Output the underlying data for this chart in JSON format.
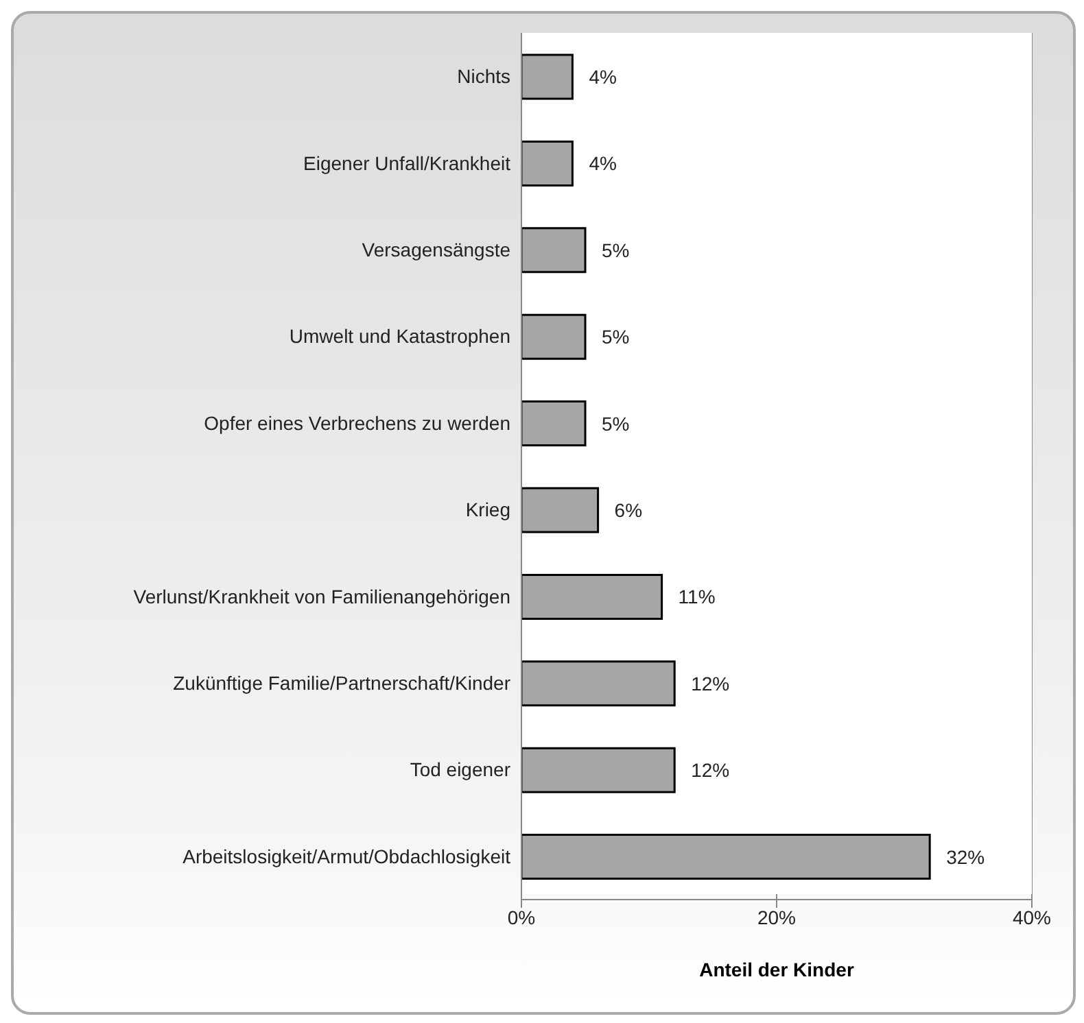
{
  "chart_data": {
    "type": "bar",
    "orientation": "horizontal",
    "xlabel": "Anteil der Kinder",
    "categories": [
      "Nichts",
      "Eigener Unfall/Krankheit",
      "Versagensängste",
      "Umwelt und Katastrophen",
      "Opfer eines Verbrechens zu werden",
      "Krieg",
      "Verlunst/Krankheit von Familienangehörigen",
      "Zukünftige Familie/Partnerschaft/Kinder",
      "Tod eigener",
      "Arbeitslosigkeit/Armut/Obdachlosigkeit"
    ],
    "values": [
      4,
      4,
      5,
      5,
      5,
      6,
      11,
      12,
      12,
      32
    ],
    "value_labels": [
      "4%",
      "4%",
      "5%",
      "5%",
      "5%",
      "6%",
      "11%",
      "12%",
      "12%",
      "32%"
    ],
    "color": "#a6a6a6",
    "xlim": [
      0,
      40
    ],
    "xticks": [
      {
        "value": 0,
        "label": "0%"
      },
      {
        "value": 20,
        "label": "20%"
      },
      {
        "value": 40,
        "label": "40%"
      }
    ],
    "grid": "x",
    "legend": false
  }
}
